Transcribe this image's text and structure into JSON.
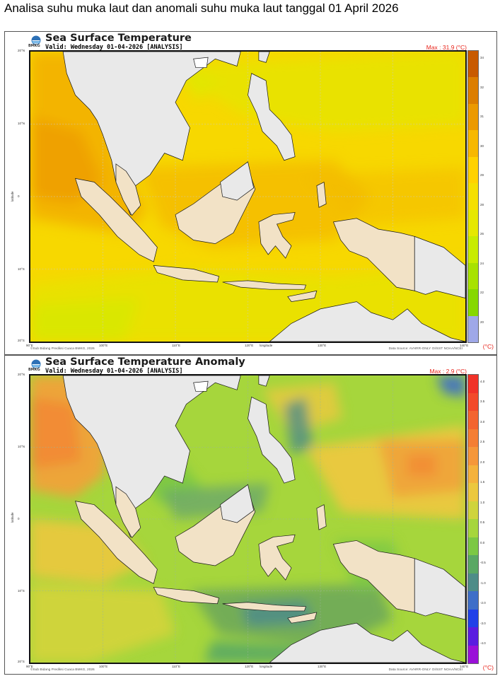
{
  "page": {
    "heading": "Analisa suhu muka laut dan anomali suhu muka laut tanggal 01 April 2026"
  },
  "axes": {
    "lat_ticks": [
      "20°N",
      "10°N",
      "0",
      "10°S",
      "20°S"
    ],
    "lon_ticks": [
      "90°E",
      "100°E",
      "110°E",
      "120°E",
      "130°E",
      "140°E"
    ],
    "ylabel": "latitude",
    "xlabel": "longitude"
  },
  "panels": [
    {
      "id": "sst",
      "title": "Sea Surface Temperature",
      "valid": "Valid: Wednesday 01-04-2026 [ANALYSIS]",
      "max_label": "Max : 31.9 (°C)",
      "unit": "(°C)",
      "credit": "©Sub Bidang Prediksi Cuaca BMKG, 2026",
      "source": "Data Source: AVHRR-ONLY OI/SST NOAA/NCEI",
      "logo_text": "BMKG",
      "colorbar_ticks": [
        "34",
        "32",
        "31",
        "30",
        "29",
        "28",
        "26",
        "24",
        "22",
        "20"
      ],
      "colorbar_colors": [
        "#c85a00",
        "#dc7e00",
        "#ec9a00",
        "#f7b800",
        "#ffd200",
        "#f5df00",
        "#e6e800",
        "#c8ec00",
        "#a8e200",
        "#86d800",
        "#9fa8e8"
      ]
    },
    {
      "id": "anom",
      "title": "Sea Surface Temperature Anomaly",
      "valid": "Valid: Wednesday 01-04-2026 [ANALYSIS]",
      "max_label": "Max : 2.9 (°C)",
      "unit": "(°C)",
      "credit": "©Sub Bidang Prediksi Cuaca BMKG, 2026",
      "source": "Data Source: AVHRR-ONLY OI/SST NOAA/NCEI",
      "logo_text": "BMKG",
      "colorbar_ticks": [
        "4.0",
        "3.5",
        "3.0",
        "2.5",
        "2.0",
        "1.5",
        "1.0",
        "0.5",
        "0.0",
        "-0.5",
        "-1.0",
        "-2.0",
        "-3.0",
        "-4.0"
      ],
      "colorbar_colors": [
        "#f03228",
        "#f24a2a",
        "#f36530",
        "#f47e34",
        "#f5973a",
        "#f4b23c",
        "#ecc83e",
        "#cfd43c",
        "#a6d63c",
        "#7cc844",
        "#5aa864",
        "#4e8c88",
        "#3e6ec8",
        "#2040e8",
        "#5a1ce0",
        "#9a10d8"
      ]
    }
  ]
}
